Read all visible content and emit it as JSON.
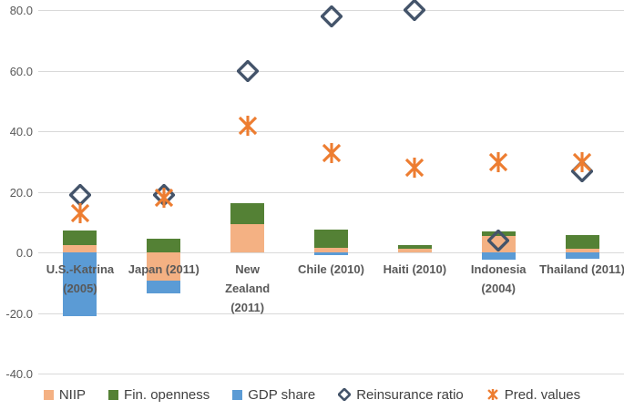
{
  "chart_data": {
    "type": "bar",
    "subtype": "stacked-bar-with-scatter-markers",
    "title": "",
    "xlabel": "",
    "ylabel": "",
    "categories": [
      "U.S.-Katrina (2005)",
      "Japan (2011)",
      "New Zealand (2011)",
      "Chile (2010)",
      "Haiti (2010)",
      "Indonesia (2004)",
      "Thailand (2011)"
    ],
    "bar_series": [
      {
        "name": "NIIP",
        "color": "#F4B183",
        "values": [
          2.4,
          -9.3,
          9.4,
          1.5,
          1.3,
          5.5,
          1.3
        ]
      },
      {
        "name": "Fin. openness",
        "color": "#548135",
        "values": [
          4.8,
          4.7,
          7.0,
          6.2,
          1.2,
          1.4,
          4.5
        ]
      },
      {
        "name": "GDP share",
        "color": "#5B9BD5",
        "values": [
          -21.0,
          -4.0,
          0,
          -0.9,
          0,
          -2.3,
          -2.0
        ]
      }
    ],
    "marker_series": [
      {
        "name": "Reinsurance ratio",
        "marker": "diamond",
        "color": "#44546A",
        "values": [
          19,
          19,
          60,
          78,
          80,
          4,
          27
        ]
      },
      {
        "name": "Pred. values",
        "marker": "asterisk",
        "color": "#ED7D31",
        "values": [
          13,
          18,
          42,
          33,
          28,
          30,
          30
        ]
      }
    ],
    "y_axis": {
      "min": -40,
      "max": 80,
      "step": 20,
      "ticks": [
        {
          "label": "80.0",
          "value": 80
        },
        {
          "label": "60.0",
          "value": 60
        },
        {
          "label": "40.0",
          "value": 40
        },
        {
          "label": "20.0",
          "value": 20
        },
        {
          "label": "0.0",
          "value": 0
        },
        {
          "label": "-20.0",
          "value": -20
        },
        {
          "label": "-40.0",
          "value": -40
        }
      ]
    },
    "grid": true,
    "legend_position": "bottom"
  },
  "colors": {
    "gridline": "#d9d9d9",
    "axis_text": "#595959",
    "category_text": "#595959",
    "legend_text": "#404040",
    "background": "#ffffff"
  }
}
